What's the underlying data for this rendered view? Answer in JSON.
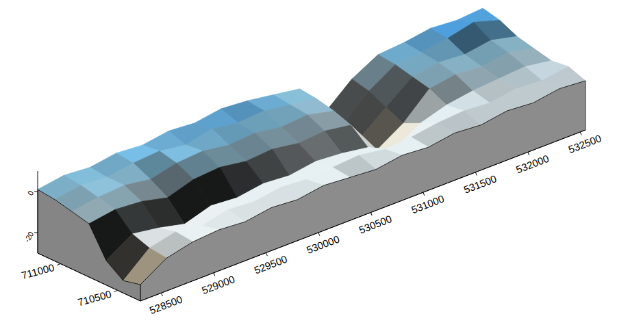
{
  "chart_data": {
    "type": "surface",
    "x": [
      528300,
      528550,
      528800,
      529050,
      529300,
      529550,
      529800,
      530050,
      530300,
      530550,
      530800,
      531050,
      531300,
      531550,
      531800,
      532050,
      532300,
      532550
    ],
    "y": [
      710300,
      710450,
      710600,
      710750,
      710900,
      711050,
      711200
    ],
    "z": [
      [
        -22,
        -14,
        -11,
        -10,
        -11,
        -9,
        -10,
        -8,
        -9,
        -10,
        -8,
        -9,
        -7,
        -8,
        -6,
        -7,
        -5,
        -6
      ],
      [
        -24,
        -13,
        -10,
        -12,
        -9,
        -10,
        -8,
        -9,
        -8,
        -7,
        -9,
        -8,
        -6,
        -5,
        -6,
        -4,
        -5,
        -3
      ],
      [
        -18,
        -10,
        -12,
        -15,
        -11,
        -12,
        -10,
        -11,
        -9,
        -10,
        -12,
        -18,
        -10,
        -6,
        -4,
        -3,
        -2,
        -4
      ],
      [
        -4,
        -2,
        -3,
        -6,
        -2,
        -1,
        -3,
        -2,
        -4,
        -3,
        -5,
        -22,
        -14,
        -2,
        0,
        -1,
        1,
        -2
      ],
      [
        -2,
        0,
        1,
        -1,
        2,
        3,
        1,
        2,
        0,
        1,
        -2,
        -20,
        -10,
        0,
        2,
        1,
        3,
        0
      ],
      [
        0,
        2,
        1,
        3,
        4,
        2,
        5,
        3,
        4,
        2,
        0,
        -18,
        -6,
        2,
        3,
        5,
        8,
        4
      ],
      [
        1,
        3,
        2,
        4,
        3,
        5,
        4,
        6,
        5,
        3,
        1,
        -15,
        -4,
        3,
        4,
        6,
        5,
        6
      ]
    ],
    "xlim": [
      528300,
      532550
    ],
    "ylim": [
      710300,
      711200
    ],
    "zlim": [
      -30,
      10
    ],
    "xticks": [
      528500,
      529000,
      529500,
      530000,
      530500,
      531000,
      531500,
      532000,
      532500
    ],
    "yticks": [
      710500,
      711000
    ],
    "zticks": [
      -20,
      0
    ]
  }
}
